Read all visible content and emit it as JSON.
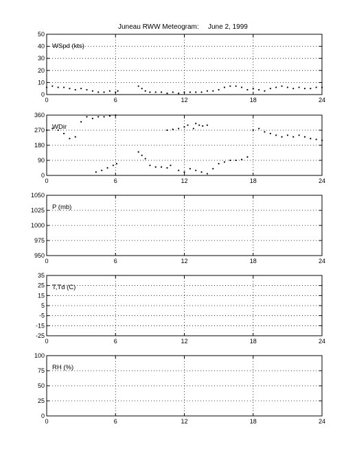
{
  "figure": {
    "title_left": "Juneau RWW Meteogram:",
    "title_right": "June  2, 1999"
  },
  "chart_data": [
    {
      "type": "scatter",
      "id": "wspd",
      "panel_label": "WSpd (kts)",
      "xlim": [
        0,
        24
      ],
      "ylim": [
        0,
        50
      ],
      "x_ticks": [
        0,
        6,
        12,
        18,
        24
      ],
      "y_ticks": [
        0,
        10,
        20,
        30,
        40,
        50
      ],
      "grid": true,
      "series": [
        {
          "x": [
            0,
            0.5,
            1,
            1.5,
            2,
            2.5,
            3,
            3.5,
            4,
            4.5,
            5,
            5.5,
            6,
            6.2,
            8,
            8.3,
            8.6,
            9,
            9.5,
            10,
            10.5,
            11,
            11.5,
            12,
            12.5,
            13,
            13.5,
            14,
            14.5,
            15,
            15.5,
            16,
            16.5,
            17,
            17.5,
            18,
            18.5,
            19,
            19.5,
            20,
            20.5,
            21,
            21.5,
            22,
            22.5,
            23,
            23.5,
            24
          ],
          "y": [
            6,
            7,
            6,
            6,
            5,
            4,
            5,
            4,
            3,
            2,
            2,
            3,
            2,
            3,
            7,
            5,
            3,
            2,
            2,
            2,
            1,
            2,
            1,
            2,
            2,
            2,
            2,
            3,
            3,
            4,
            6,
            7,
            7,
            6,
            4,
            5,
            4,
            3,
            5,
            6,
            7,
            6,
            5,
            6,
            5,
            5,
            6,
            6
          ]
        }
      ]
    },
    {
      "type": "scatter",
      "id": "wdir",
      "panel_label": "WDir",
      "xlim": [
        0,
        24
      ],
      "ylim": [
        0,
        360
      ],
      "x_ticks": [
        0,
        6,
        12,
        18,
        24
      ],
      "y_ticks": [
        0,
        90,
        180,
        270,
        360
      ],
      "grid": true,
      "series": [
        {
          "x": [
            0,
            0.5,
            1,
            1.5,
            2,
            2.5,
            3,
            3.5,
            4,
            4.5,
            5,
            5.5,
            6,
            4.3,
            4.8,
            5.3,
            5.8,
            6.1,
            8,
            8.3,
            8.6,
            9,
            9.5,
            10,
            10.5,
            10.8,
            11.5,
            12,
            12.5,
            13,
            13.5,
            14,
            14.5,
            15,
            15.5,
            16,
            16.5,
            17,
            17.5,
            18,
            18.5,
            19,
            19.5,
            20,
            20.5,
            21,
            21.5,
            22,
            22.5,
            23,
            23.5,
            24
          ],
          "y": [
            270,
            280,
            270,
            250,
            220,
            230,
            320,
            350,
            340,
            350,
            350,
            355,
            360,
            20,
            30,
            45,
            60,
            70,
            140,
            120,
            100,
            60,
            50,
            50,
            45,
            60,
            30,
            20,
            40,
            30,
            20,
            10,
            40,
            70,
            80,
            90,
            90,
            95,
            110,
            270,
            280,
            260,
            250,
            240,
            230,
            240,
            230,
            240,
            230,
            220,
            215,
            210
          ]
        },
        {
          "x": [
            10.5,
            11,
            11.5,
            12,
            12.3,
            12.8,
            13,
            13.3,
            13.6,
            14
          ],
          "y": [
            270,
            275,
            280,
            290,
            300,
            280,
            310,
            300,
            295,
            300
          ]
        }
      ]
    },
    {
      "type": "line",
      "id": "pressure",
      "panel_label": "P (mb)",
      "xlim": [
        0,
        24
      ],
      "ylim": [
        950,
        1050
      ],
      "x_ticks": [
        0,
        6,
        12,
        18,
        24
      ],
      "y_ticks": [
        950,
        975,
        1000,
        1025,
        1050
      ],
      "grid": true,
      "series": []
    },
    {
      "type": "line",
      "id": "temp",
      "panel_label": "T,Td (C)",
      "xlim": [
        0,
        24
      ],
      "ylim": [
        -25,
        35
      ],
      "x_ticks": [
        0,
        6,
        12,
        18,
        24
      ],
      "y_ticks": [
        -25,
        -15,
        -5,
        5,
        15,
        25,
        35
      ],
      "grid": true,
      "series": []
    },
    {
      "type": "line",
      "id": "rh",
      "panel_label": "RH (%)",
      "xlim": [
        0,
        24
      ],
      "ylim": [
        0,
        100
      ],
      "x_ticks": [
        0,
        6,
        12,
        18,
        24
      ],
      "y_ticks": [
        0,
        25,
        50,
        75,
        100
      ],
      "grid": true,
      "series": []
    }
  ]
}
